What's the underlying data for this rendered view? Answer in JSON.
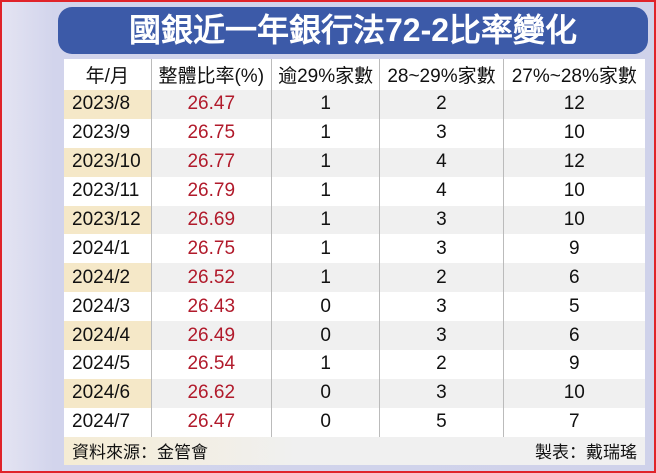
{
  "title": "國銀近一年銀行法72-2比率變化",
  "headers": [
    "年/月",
    "整體比率(%)",
    "逾29%家數",
    "28~29%家數",
    "27%~28%家數"
  ],
  "rows": [
    [
      "2023/8",
      "26.47",
      "1",
      "2",
      "12"
    ],
    [
      "2023/9",
      "26.75",
      "1",
      "3",
      "10"
    ],
    [
      "2023/10",
      "26.77",
      "1",
      "4",
      "12"
    ],
    [
      "2023/11",
      "26.79",
      "1",
      "4",
      "10"
    ],
    [
      "2023/12",
      "26.69",
      "1",
      "3",
      "10"
    ],
    [
      "2024/1",
      "26.75",
      "1",
      "3",
      "9"
    ],
    [
      "2024/2",
      "26.52",
      "1",
      "2",
      "6"
    ],
    [
      "2024/3",
      "26.43",
      "0",
      "3",
      "5"
    ],
    [
      "2024/4",
      "26.49",
      "0",
      "3",
      "6"
    ],
    [
      "2024/5",
      "26.54",
      "1",
      "2",
      "9"
    ],
    [
      "2024/6",
      "26.62",
      "0",
      "3",
      "10"
    ],
    [
      "2024/7",
      "26.47",
      "0",
      "5",
      "7"
    ]
  ],
  "footer": {
    "source": "資料來源：金管會",
    "author": "製表：戴瑞瑤"
  },
  "colors": {
    "title_bg": "#3c5aa8",
    "rate_text": "#b11a2b",
    "border": "#e0232a"
  }
}
